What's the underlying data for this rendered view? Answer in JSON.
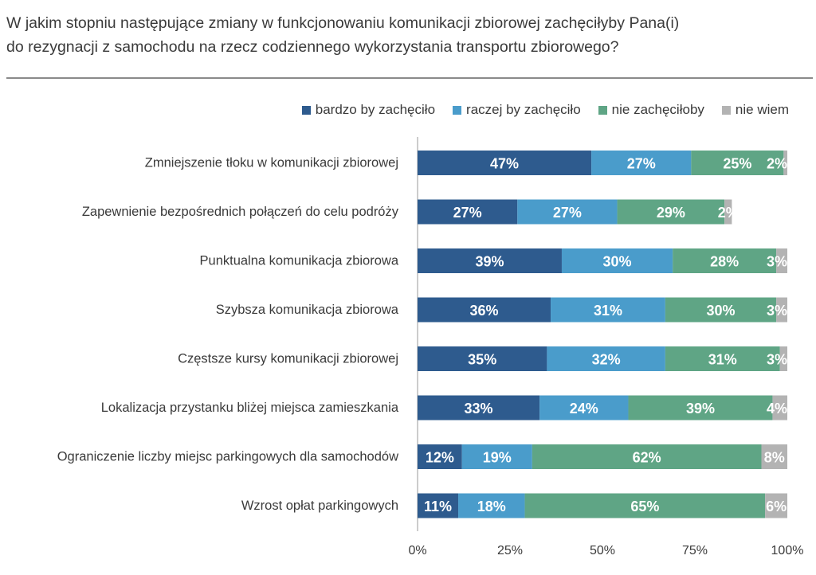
{
  "header": {
    "title_line1": "W jakim stopniu następujące zmiany w funkcjonowaniu komunikacji zbiorowej zachęciłyby Pana(i)",
    "title_line2": "do rezygnacji z samochodu na rzecz codziennego wykorzystania transportu zbiorowego?"
  },
  "chart_data": {
    "type": "bar",
    "orientation": "horizontal",
    "stacked": true,
    "title": "W jakim stopniu następujące zmiany w funkcjonowaniu komunikacji zbiorowej zachęciłyby Pana(i) do rezygnacji z samochodu na rzecz codziennego wykorzystania transportu zbiorowego?",
    "categories": [
      "Zmniejszenie tłoku w komunikacji zbiorowej",
      "Zapewnienie bezpośrednich połączeń do celu podróży",
      "Punktualna komunikacja zbiorowa",
      "Szybsza komunikacja zbiorowa",
      "Częstsze kursy komunikacji zbiorowej",
      "Lokalizacja przystanku bliżej miejsca zamieszkania",
      "Ograniczenie liczby miejsc parkingowych dla samochodów",
      "Wzrost opłat parkingowych"
    ],
    "series": [
      {
        "name": "bardzo by zachęciło",
        "color": "#2e5b8e",
        "values": [
          47,
          27,
          39,
          36,
          35,
          33,
          12,
          11
        ]
      },
      {
        "name": "raczej by zachęciło",
        "color": "#4a9ccb",
        "values": [
          27,
          27,
          30,
          31,
          32,
          24,
          19,
          18
        ]
      },
      {
        "name": "nie zachęciłoby",
        "color": "#5fa585",
        "values": [
          25,
          29,
          28,
          30,
          31,
          39,
          62,
          65
        ]
      },
      {
        "name": "nie wiem",
        "color": "#b3b3b3",
        "values": [
          2,
          2,
          3,
          3,
          3,
          4,
          8,
          6
        ]
      }
    ],
    "xlim": [
      0,
      100
    ],
    "xticks": [
      "0%",
      "25%",
      "50%",
      "75%",
      "100%"
    ],
    "value_suffix": "%",
    "legend_position": "top-right",
    "grid": false
  }
}
